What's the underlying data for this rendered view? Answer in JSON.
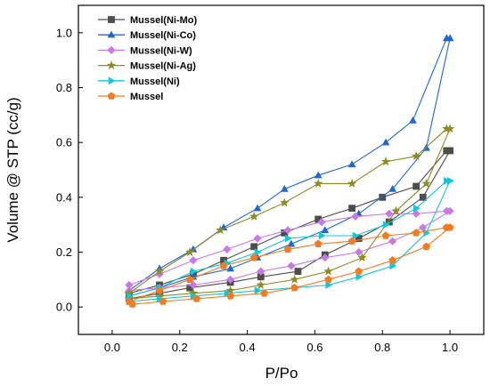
{
  "chart_data": {
    "type": "line",
    "xlabel": "P/Po",
    "ylabel": "Volume @ STP (cc/g)",
    "xlim": [
      -0.1,
      1.1
    ],
    "ylim": [
      -0.1,
      1.1
    ],
    "xticks": [
      0.0,
      0.2,
      0.4,
      0.6,
      0.8,
      1.0
    ],
    "yticks": [
      0.0,
      0.2,
      0.4,
      0.6,
      0.8,
      1.0
    ],
    "xtick_labels": [
      "0.0",
      "0.2",
      "0.4",
      "0.6",
      "0.8",
      "1.0"
    ],
    "ytick_labels": [
      "0.0",
      "0.2",
      "0.4",
      "0.6",
      "0.8",
      "1.0"
    ],
    "grid": false,
    "legend_position": "top-left",
    "series": [
      {
        "name": "Mussel(Ni-Mo)",
        "color": "#4d4d4d",
        "marker": "square",
        "x": [
          0.05,
          0.14,
          0.23,
          0.35,
          0.44,
          0.55,
          0.63,
          0.73,
          0.82,
          0.92,
          1.0,
          0.99,
          0.9,
          0.8,
          0.71,
          0.61,
          0.51,
          0.42,
          0.33,
          0.24,
          0.14,
          0.05
        ],
        "y": [
          0.03,
          0.05,
          0.07,
          0.09,
          0.11,
          0.13,
          0.19,
          0.25,
          0.31,
          0.4,
          0.57,
          0.57,
          0.44,
          0.4,
          0.36,
          0.32,
          0.27,
          0.22,
          0.17,
          0.12,
          0.08,
          0.05
        ]
      },
      {
        "name": "Mussel(Ni-Co)",
        "color": "#1f67d2",
        "marker": "triangle",
        "x": [
          0.05,
          0.14,
          0.24,
          0.35,
          0.43,
          0.53,
          0.63,
          0.73,
          0.83,
          0.93,
          1.0,
          0.99,
          0.89,
          0.81,
          0.71,
          0.61,
          0.51,
          0.43,
          0.33,
          0.24,
          0.14,
          0.05
        ],
        "y": [
          0.04,
          0.07,
          0.11,
          0.14,
          0.18,
          0.23,
          0.28,
          0.34,
          0.43,
          0.58,
          0.98,
          0.98,
          0.68,
          0.6,
          0.52,
          0.48,
          0.43,
          0.36,
          0.29,
          0.21,
          0.14,
          0.06
        ]
      },
      {
        "name": "Mussel(Ni-W)",
        "color": "#c879e8",
        "marker": "diamond",
        "x": [
          0.05,
          0.14,
          0.24,
          0.35,
          0.44,
          0.53,
          0.63,
          0.73,
          0.83,
          0.92,
          1.0,
          0.99,
          0.9,
          0.82,
          0.72,
          0.62,
          0.52,
          0.43,
          0.34,
          0.24,
          0.14,
          0.05
        ],
        "y": [
          0.06,
          0.07,
          0.08,
          0.1,
          0.13,
          0.15,
          0.18,
          0.2,
          0.24,
          0.29,
          0.35,
          0.35,
          0.34,
          0.34,
          0.33,
          0.31,
          0.28,
          0.25,
          0.21,
          0.17,
          0.12,
          0.08
        ]
      },
      {
        "name": "Mussel(Ni-Ag)",
        "color": "#8c8c23",
        "marker": "star",
        "x": [
          0.05,
          0.14,
          0.24,
          0.35,
          0.44,
          0.54,
          0.64,
          0.74,
          0.84,
          0.93,
          1.0,
          0.99,
          0.9,
          0.81,
          0.71,
          0.61,
          0.51,
          0.42,
          0.32,
          0.23,
          0.14,
          0.05
        ],
        "y": [
          0.03,
          0.04,
          0.05,
          0.06,
          0.08,
          0.1,
          0.13,
          0.18,
          0.35,
          0.45,
          0.65,
          0.65,
          0.55,
          0.53,
          0.45,
          0.45,
          0.38,
          0.33,
          0.28,
          0.2,
          0.13,
          0.05
        ]
      },
      {
        "name": "Mussel(Ni)",
        "color": "#12c8d8",
        "marker": "triangle-right",
        "x": [
          0.05,
          0.14,
          0.24,
          0.34,
          0.43,
          0.54,
          0.64,
          0.73,
          0.83,
          0.93,
          1.0,
          0.99,
          0.9,
          0.81,
          0.72,
          0.62,
          0.52,
          0.43,
          0.34,
          0.24,
          0.14,
          0.05
        ],
        "y": [
          0.02,
          0.03,
          0.04,
          0.05,
          0.06,
          0.07,
          0.08,
          0.11,
          0.15,
          0.27,
          0.46,
          0.46,
          0.36,
          0.3,
          0.26,
          0.26,
          0.25,
          0.2,
          0.16,
          0.13,
          0.07,
          0.04
        ]
      },
      {
        "name": "Mussel",
        "color": "#f47b20",
        "marker": "pentagon",
        "x": [
          0.06,
          0.15,
          0.25,
          0.35,
          0.45,
          0.54,
          0.64,
          0.73,
          0.83,
          0.93,
          1.0,
          0.99,
          0.9,
          0.81,
          0.71,
          0.61,
          0.52,
          0.42,
          0.33,
          0.23,
          0.14,
          0.05
        ],
        "y": [
          0.01,
          0.02,
          0.03,
          0.04,
          0.05,
          0.07,
          0.1,
          0.13,
          0.17,
          0.22,
          0.29,
          0.29,
          0.27,
          0.26,
          0.24,
          0.23,
          0.21,
          0.18,
          0.15,
          0.1,
          0.06,
          0.02
        ]
      }
    ]
  }
}
